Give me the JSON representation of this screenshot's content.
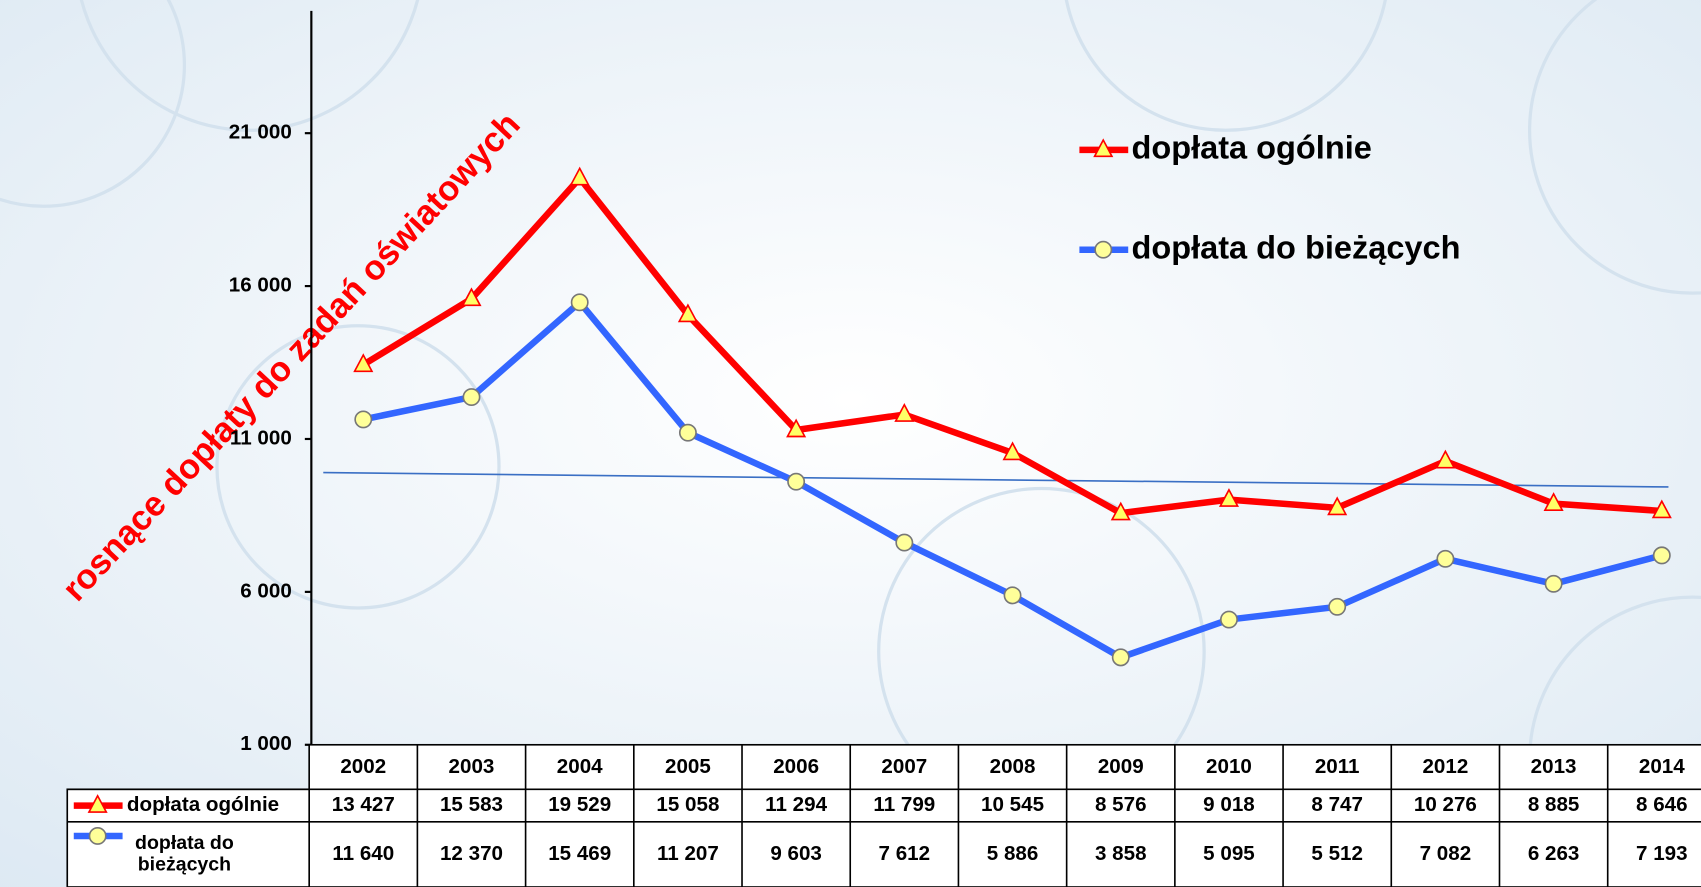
{
  "chart_data": {
    "type": "line",
    "annotation": "rosnące dopłaty do zadań oświatowych",
    "categories": [
      "2002",
      "2003",
      "2004",
      "2005",
      "2006",
      "2007",
      "2008",
      "2009",
      "2010",
      "2011",
      "2012",
      "2013",
      "2014"
    ],
    "series": [
      {
        "name": "dopłata ogólnie",
        "color": "#ff0000",
        "marker": "triangle",
        "values": [
          13427,
          15583,
          19529,
          15058,
          11294,
          11799,
          10545,
          8576,
          9018,
          8747,
          10276,
          8885,
          8646
        ],
        "value_labels": [
          "13 427",
          "15 583",
          "19 529",
          "15 058",
          "11 294",
          "11 799",
          "10 545",
          "8 576",
          "9 018",
          "8 747",
          "10 276",
          "8 885",
          "8 646"
        ]
      },
      {
        "name": "dopłata do bieżących",
        "color": "#3366ff",
        "marker": "circle",
        "values": [
          11640,
          12370,
          15469,
          11207,
          9603,
          7612,
          5886,
          3858,
          5095,
          5512,
          7082,
          6263,
          7193
        ],
        "value_labels": [
          "11 640",
          "12 370",
          "15 469",
          "11 207",
          "9 603",
          "7 612",
          "5 886",
          "3 858",
          "5 095",
          "5 512",
          "7 082",
          "6 263",
          "7 193"
        ]
      }
    ],
    "trend": [
      9900,
      9430
    ],
    "ylim": [
      1000,
      25000
    ],
    "yticks": [
      {
        "value": 1000,
        "label": "1 000"
      },
      {
        "value": 6000,
        "label": "6 000"
      },
      {
        "value": 11000,
        "label": "11 000"
      },
      {
        "value": 16000,
        "label": "16 000"
      },
      {
        "value": 21000,
        "label": "21 000"
      }
    ],
    "grid": false,
    "legend": "top-right"
  }
}
